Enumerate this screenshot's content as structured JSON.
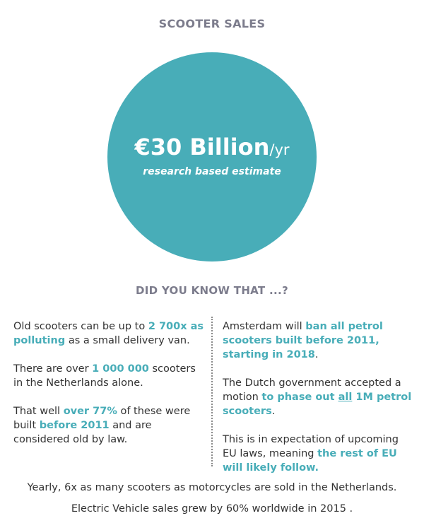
{
  "title": "SCOOTER SALES",
  "circle": {
    "amount": "€30 Billion",
    "unit": "/yr",
    "subtitle": "research based estimate",
    "color": "#48adb8"
  },
  "section_title": "DID YOU KNOW THAT ...?",
  "left_column": {
    "fact1": {
      "before": "Old scooters can be up to ",
      "highlight": "2 700x as polluting",
      "after": " as a small delivery van."
    },
    "fact2": {
      "before": "There are over ",
      "highlight": "1 000 000",
      "after": " scooters in the Netherlands alone."
    },
    "fact3": {
      "before": "That well ",
      "highlight1": "over 77%",
      "middle": " of these were built ",
      "highlight2": "before 2011",
      "after": " and are considered old by law."
    }
  },
  "right_column": {
    "fact1": {
      "before": "Amsterdam will ",
      "highlight": "ban all petrol scooters built before 2011, starting in 2018",
      "after": "."
    },
    "fact2": {
      "before": "The Dutch government accepted a motion ",
      "highlight1": "to phase out ",
      "highlight_underlined": "all",
      "highlight2": " 1M petrol scooters",
      "after": "."
    },
    "fact3": {
      "before": "This is in expectation of upcoming EU laws, meaning ",
      "highlight": "the rest of EU will likely follow."
    }
  },
  "footer": {
    "line1": "Yearly, 6x as many scooters as motorcycles are sold in the Netherlands.",
    "line2": "Electric Vehicle sales grew by 60% worldwide in 2015 ."
  },
  "accent_color": "#48adb8",
  "heading_color": "#7c7c8c"
}
